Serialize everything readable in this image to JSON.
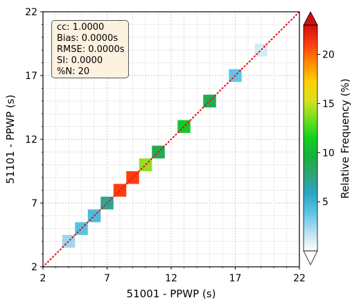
{
  "chart_data": {
    "type": "heatmap",
    "subtype": "scatter-density",
    "xlabel": "51001 - PPWP (s)",
    "ylabel": "51101 - PPWP (s)",
    "xlim": [
      2,
      22
    ],
    "ylim": [
      2,
      22
    ],
    "xticks": [
      "2",
      "7",
      "12",
      "17",
      "22"
    ],
    "yticks": [
      "2",
      "7",
      "12",
      "17",
      "22"
    ],
    "grid": true,
    "identity_line": true,
    "colorbar": {
      "label": "Relative Frequency (%)",
      "ticks": [
        "5",
        "10",
        "15",
        "20"
      ],
      "range": [
        0,
        23
      ],
      "colors": [
        "#ffffff",
        "#b8dff2",
        "#5ec5e6",
        "#2aa6c8",
        "#30a37a",
        "#18b040",
        "#10d020",
        "#70e020",
        "#d8e020",
        "#ffd000",
        "#ff8c00",
        "#ff3a10",
        "#d01010"
      ]
    },
    "cells": [
      {
        "x": 4,
        "y": 4,
        "value": 2.5
      },
      {
        "x": 5,
        "y": 5,
        "value": 4
      },
      {
        "x": 6,
        "y": 6,
        "value": 4.5
      },
      {
        "x": 7,
        "y": 7,
        "value": 7
      },
      {
        "x": 8,
        "y": 8,
        "value": 21
      },
      {
        "x": 9,
        "y": 9,
        "value": 21
      },
      {
        "x": 10,
        "y": 10,
        "value": 14
      },
      {
        "x": 11,
        "y": 11,
        "value": 9
      },
      {
        "x": 13,
        "y": 13,
        "value": 11
      },
      {
        "x": 15,
        "y": 15,
        "value": 9
      },
      {
        "x": 17,
        "y": 17,
        "value": 3.8
      },
      {
        "x": 19,
        "y": 19,
        "value": 1.2
      }
    ],
    "stats": [
      "cc: 1.0000",
      "Bias: 0.0000s",
      "RMSE: 0.0000s",
      "SI: 0.0000",
      "%N: 20"
    ]
  }
}
